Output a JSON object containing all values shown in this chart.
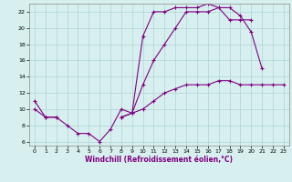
{
  "xlabel": "Windchill (Refroidissement éolien,°C)",
  "bg_color": "#d7efef",
  "grid_color": "#aed4d4",
  "line_color": "#800080",
  "xlim": [
    -0.5,
    23.5
  ],
  "ylim": [
    5.5,
    23.0
  ],
  "xticks": [
    0,
    1,
    2,
    3,
    4,
    5,
    6,
    7,
    8,
    9,
    10,
    11,
    12,
    13,
    14,
    15,
    16,
    17,
    18,
    19,
    20,
    21,
    22,
    23
  ],
  "yticks": [
    6,
    8,
    10,
    12,
    14,
    16,
    18,
    20,
    22
  ],
  "line1_y": [
    11,
    9,
    9,
    8,
    7,
    7,
    6,
    7.5,
    10,
    9.5,
    19,
    22,
    22,
    22.5,
    22.5,
    22.5,
    23,
    22.5,
    22.5,
    21.5,
    19.5,
    15,
    null,
    null
  ],
  "line2_y": [
    10,
    9,
    9,
    null,
    null,
    null,
    null,
    null,
    null,
    null,
    null,
    null,
    null,
    null,
    null,
    null,
    null,
    null,
    null,
    null,
    null,
    null,
    null,
    null
  ],
  "line3_y": [
    null,
    null,
    null,
    null,
    null,
    null,
    null,
    null,
    9,
    9.5,
    10,
    11,
    12,
    12.5,
    13,
    13,
    13,
    13.5,
    13.5,
    13,
    13,
    13,
    13,
    13
  ],
  "line4_y": [
    null,
    null,
    null,
    null,
    null,
    null,
    null,
    null,
    9,
    9.5,
    13,
    16,
    18,
    20,
    22,
    22,
    22,
    22.5,
    21,
    21,
    21,
    null,
    null,
    null
  ]
}
